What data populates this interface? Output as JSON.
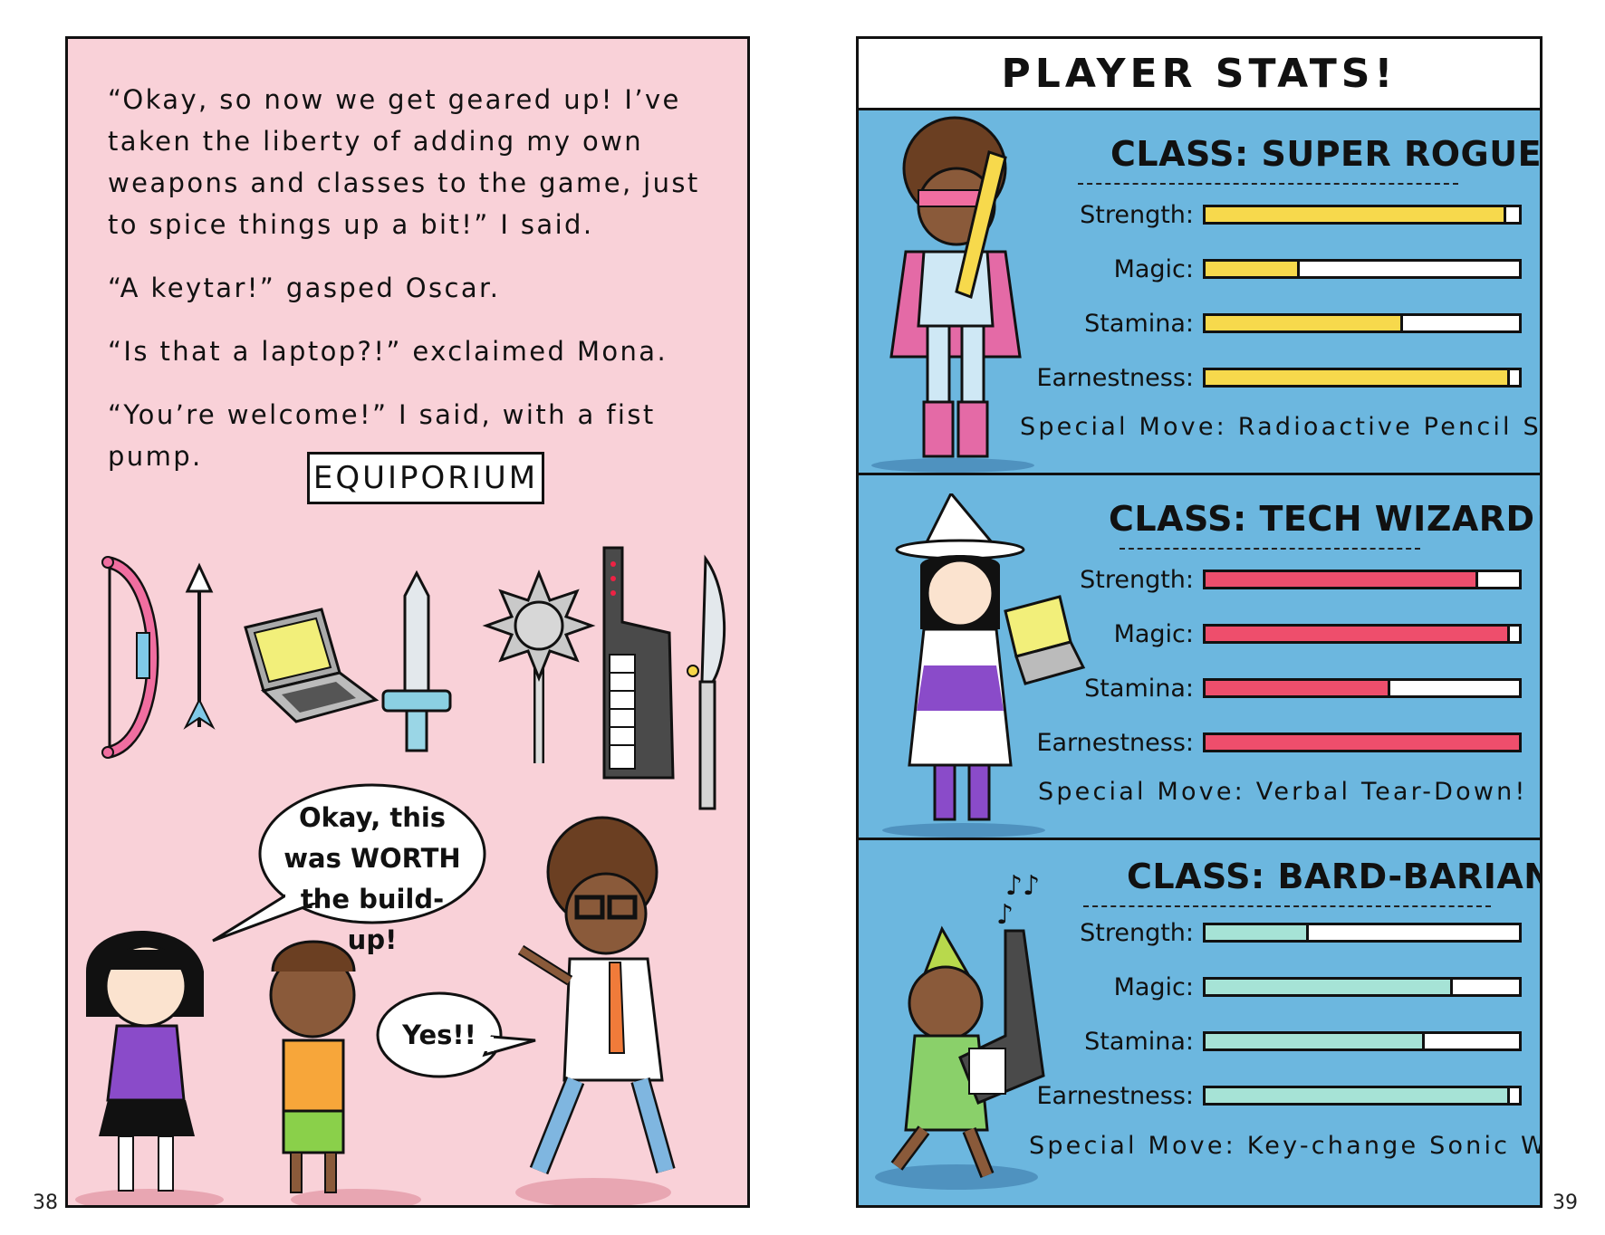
{
  "left_page": {
    "page_number": "38",
    "narration": [
      "“Okay, so now we get geared up! I’ve taken the liberty of adding my own weapons and classes to the game, just to spice things up a bit!” I said.",
      "“A keytar!” gasped Oscar.",
      "“Is that a laptop?!” exclaimed Mona.",
      "“You’re welcome!” I said, with a fist pump."
    ],
    "equipment_label": "EQUIPORIUM",
    "weapons": [
      "bow-icon",
      "arrow-icon",
      "laptop-icon",
      "sword-icon",
      "mace-icon",
      "keytar-icon",
      "spear-icon"
    ],
    "speech_bubbles": {
      "mona_line1": "Okay, this",
      "mona_line2": "was WORTH",
      "mona_line3": "the build-up!",
      "oscar": "Yes!!"
    }
  },
  "right_page": {
    "page_number": "39",
    "header": "PLAYER STATS!",
    "classes": [
      {
        "title": "CLASS: SUPER ROGUE!",
        "color": "#f7d94c",
        "stats": [
          {
            "label": "Strength:",
            "value": 0.96
          },
          {
            "label": "Magic:",
            "value": 0.3
          },
          {
            "label": "Stamina:",
            "value": 0.63
          },
          {
            "label": "Earnestness:",
            "value": 0.97
          }
        ],
        "special_move": "Special Move: Radioactive Pencil Storm!"
      },
      {
        "title": "CLASS: TECH WIZARD!",
        "color": "#ee4e6c",
        "stats": [
          {
            "label": "Strength:",
            "value": 0.87
          },
          {
            "label": "Magic:",
            "value": 0.97
          },
          {
            "label": "Stamina:",
            "value": 0.59
          },
          {
            "label": "Earnestness:",
            "value": 1.0
          }
        ],
        "special_move": "Special Move: Verbal Tear-Down!"
      },
      {
        "title": "CLASS: BARD-BARIAN!",
        "color": "#a6e3d6",
        "stats": [
          {
            "label": "Strength:",
            "value": 0.33
          },
          {
            "label": "Magic:",
            "value": 0.79
          },
          {
            "label": "Stamina:",
            "value": 0.7
          },
          {
            "label": "Earnestness:",
            "value": 0.97
          }
        ],
        "special_move": "Special Move: Key-change Sonic Wave!"
      }
    ]
  }
}
